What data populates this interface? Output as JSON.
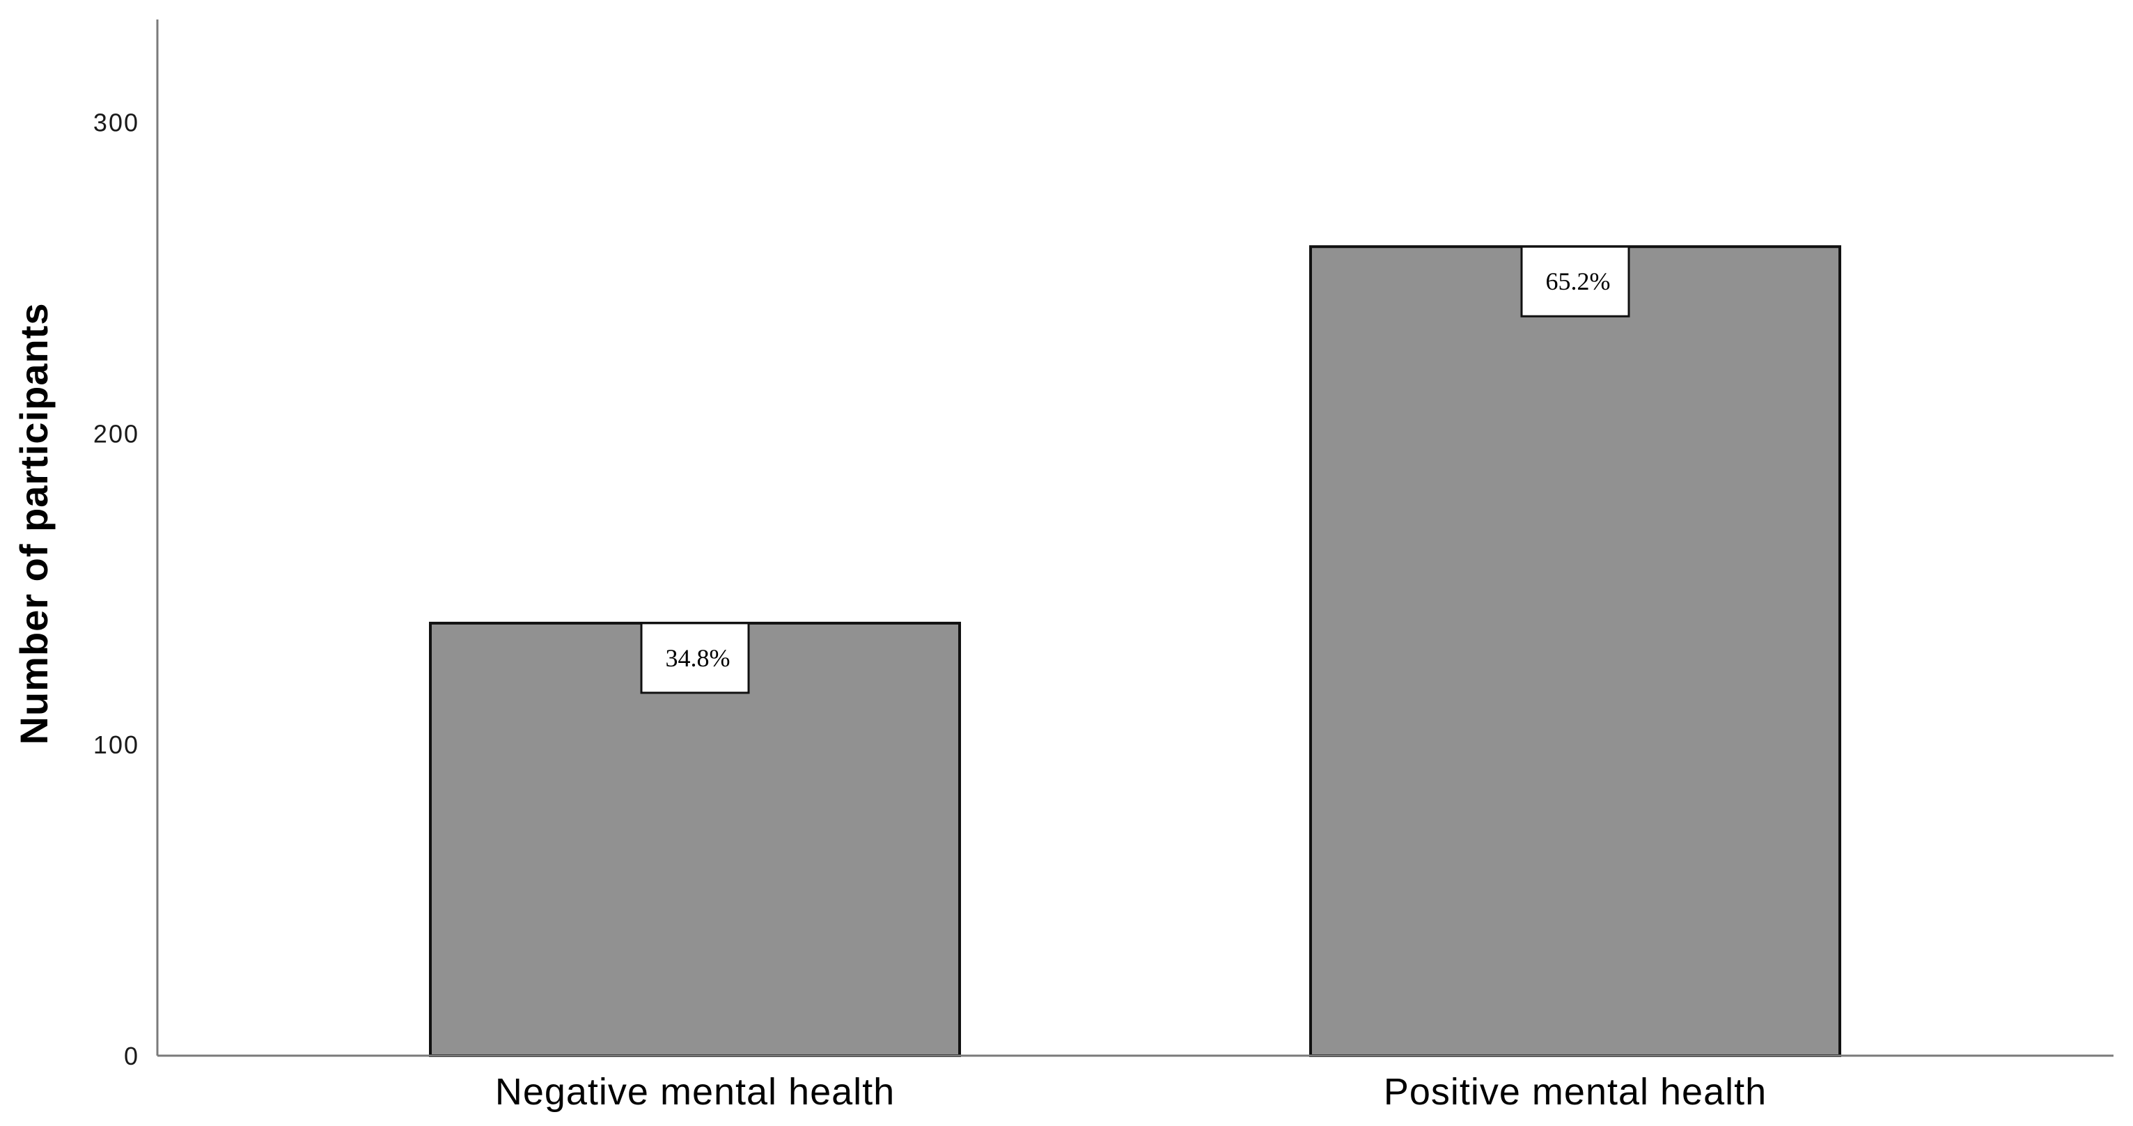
{
  "chart_data": {
    "type": "bar",
    "title": "",
    "xlabel": "",
    "ylabel": "Number of participants",
    "ylim": [
      0,
      333
    ],
    "yticks": [
      0,
      100,
      200,
      300
    ],
    "categories": [
      "Negative mental health",
      "Positive mental health"
    ],
    "values": [
      139,
      260
    ],
    "data_labels": [
      "34.8%",
      "65.2%"
    ],
    "bar_color": "#919191",
    "grid": false,
    "legend": "none"
  }
}
